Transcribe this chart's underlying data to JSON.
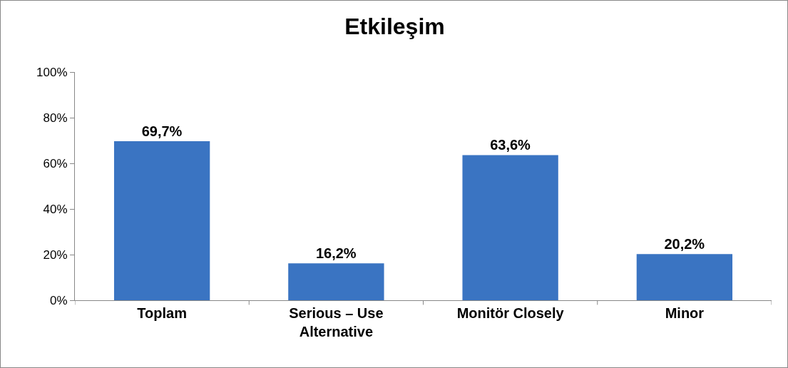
{
  "chart_data": {
    "type": "bar",
    "title": "Etkileşim",
    "categories": [
      "Toplam",
      "Serious – Use Alternative",
      "Monitör Closely",
      "Minor"
    ],
    "values": [
      69.7,
      16.2,
      63.6,
      20.2
    ],
    "value_labels": [
      "69,7%",
      "16,2%",
      "63,6%",
      "20,2%"
    ],
    "color": "#3a74c2",
    "ylim": [
      0,
      100
    ],
    "yticks": [
      {
        "value": 0,
        "label": "0%"
      },
      {
        "value": 20,
        "label": "20%"
      },
      {
        "value": 40,
        "label": "40%"
      },
      {
        "value": 60,
        "label": "60%"
      },
      {
        "value": 80,
        "label": "80%"
      },
      {
        "value": 100,
        "label": "100%"
      }
    ],
    "grid": false
  }
}
